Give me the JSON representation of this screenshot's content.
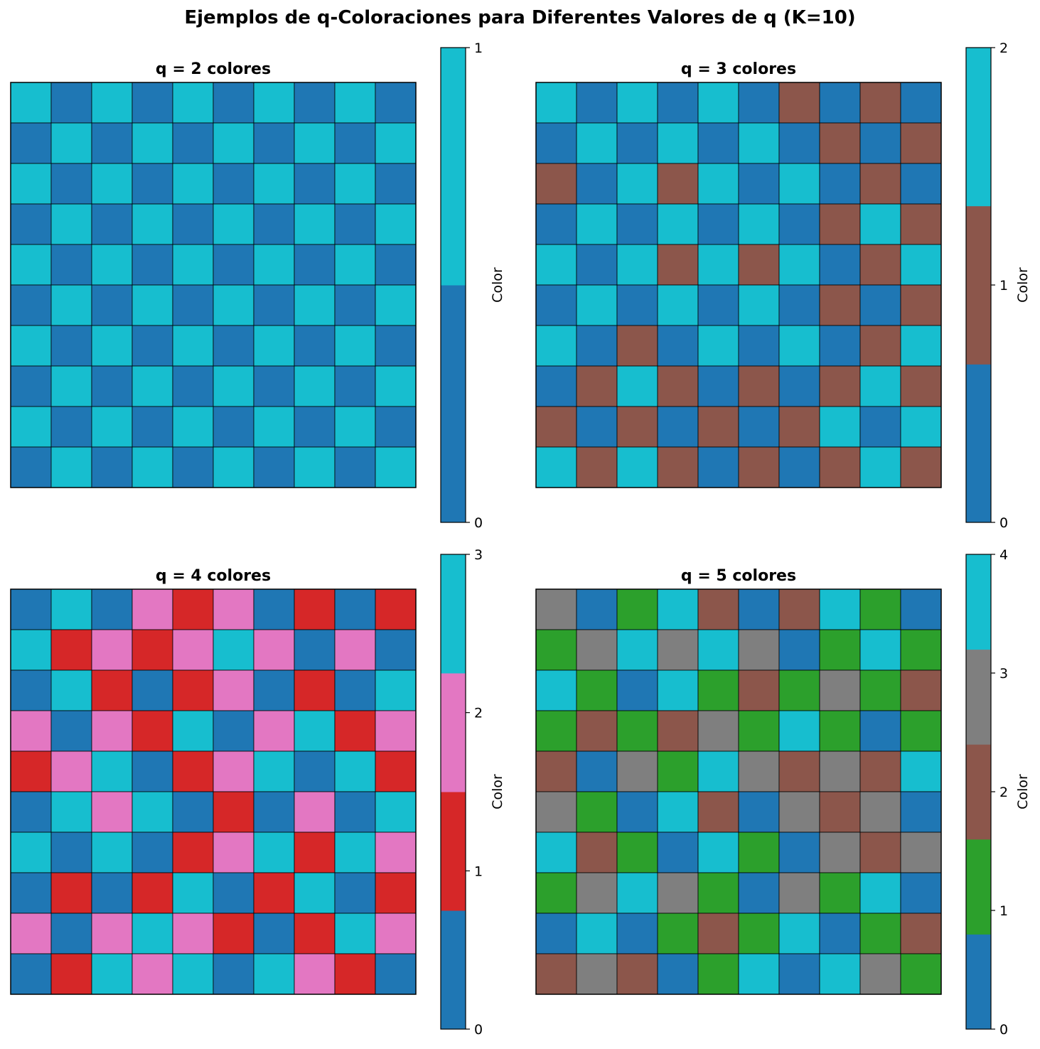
{
  "title": "Ejemplos de q-Coloraciones para Diferentes Valores de q (K=10)",
  "chart_data": [
    {
      "type": "heatmap",
      "title": "q = 2 colores",
      "q": 2,
      "colorbar_label": "Color",
      "colorbar_ticks": [
        0,
        1
      ],
      "colors": [
        "#1f77b4",
        "#17becf"
      ],
      "grid": [
        [
          1,
          0,
          1,
          0,
          1,
          0,
          1,
          0,
          1,
          0
        ],
        [
          0,
          1,
          0,
          1,
          0,
          1,
          0,
          1,
          0,
          1
        ],
        [
          1,
          0,
          1,
          0,
          1,
          0,
          1,
          0,
          1,
          0
        ],
        [
          0,
          1,
          0,
          1,
          0,
          1,
          0,
          1,
          0,
          1
        ],
        [
          1,
          0,
          1,
          0,
          1,
          0,
          1,
          0,
          1,
          0
        ],
        [
          0,
          1,
          0,
          1,
          0,
          1,
          0,
          1,
          0,
          1
        ],
        [
          1,
          0,
          1,
          0,
          1,
          0,
          1,
          0,
          1,
          0
        ],
        [
          0,
          1,
          0,
          1,
          0,
          1,
          0,
          1,
          0,
          1
        ],
        [
          1,
          0,
          1,
          0,
          1,
          0,
          1,
          0,
          1,
          0
        ],
        [
          0,
          1,
          0,
          1,
          0,
          1,
          0,
          1,
          0,
          1
        ]
      ]
    },
    {
      "type": "heatmap",
      "title": "q = 3 colores",
      "q": 3,
      "colorbar_label": "Color",
      "colorbar_ticks": [
        0,
        1,
        2
      ],
      "colors": [
        "#1f77b4",
        "#8c564b",
        "#17becf"
      ],
      "grid": [
        [
          2,
          0,
          2,
          0,
          2,
          0,
          1,
          0,
          1,
          0
        ],
        [
          0,
          2,
          0,
          2,
          0,
          2,
          0,
          1,
          0,
          1
        ],
        [
          1,
          0,
          2,
          1,
          2,
          0,
          2,
          0,
          1,
          0
        ],
        [
          0,
          2,
          0,
          2,
          0,
          2,
          0,
          1,
          2,
          1
        ],
        [
          2,
          0,
          2,
          1,
          2,
          1,
          2,
          0,
          1,
          2
        ],
        [
          0,
          2,
          0,
          2,
          0,
          2,
          0,
          1,
          0,
          1
        ],
        [
          2,
          0,
          1,
          0,
          2,
          0,
          2,
          0,
          1,
          2
        ],
        [
          0,
          1,
          2,
          1,
          0,
          1,
          0,
          1,
          2,
          1
        ],
        [
          1,
          0,
          1,
          0,
          1,
          0,
          1,
          2,
          0,
          2
        ],
        [
          2,
          1,
          2,
          1,
          0,
          1,
          0,
          1,
          2,
          1
        ]
      ]
    },
    {
      "type": "heatmap",
      "title": "q = 4 colores",
      "q": 4,
      "colorbar_label": "Color",
      "colorbar_ticks": [
        0,
        1,
        2,
        3
      ],
      "colors": [
        "#1f77b4",
        "#d62728",
        "#e377c2",
        "#17becf"
      ],
      "grid": [
        [
          0,
          3,
          0,
          2,
          1,
          2,
          0,
          1,
          0,
          1
        ],
        [
          3,
          1,
          2,
          1,
          2,
          3,
          2,
          0,
          2,
          0
        ],
        [
          0,
          3,
          1,
          0,
          1,
          2,
          0,
          1,
          0,
          3
        ],
        [
          2,
          0,
          2,
          1,
          3,
          0,
          2,
          3,
          1,
          2
        ],
        [
          1,
          2,
          3,
          0,
          1,
          2,
          3,
          0,
          3,
          1
        ],
        [
          0,
          3,
          2,
          3,
          0,
          1,
          0,
          2,
          0,
          3
        ],
        [
          3,
          0,
          3,
          0,
          1,
          2,
          3,
          1,
          3,
          2
        ],
        [
          0,
          1,
          0,
          1,
          3,
          0,
          1,
          3,
          0,
          1
        ],
        [
          2,
          0,
          2,
          3,
          2,
          1,
          0,
          1,
          3,
          2
        ],
        [
          0,
          1,
          3,
          2,
          3,
          0,
          3,
          2,
          1,
          0
        ]
      ]
    },
    {
      "type": "heatmap",
      "title": "q = 5 colores",
      "q": 5,
      "colorbar_label": "Color",
      "colorbar_ticks": [
        0,
        1,
        2,
        3,
        4
      ],
      "colors": [
        "#1f77b4",
        "#2ca02c",
        "#8c564b",
        "#7f7f7f",
        "#17becf"
      ],
      "grid": [
        [
          3,
          0,
          1,
          4,
          2,
          0,
          2,
          4,
          1,
          0
        ],
        [
          1,
          3,
          4,
          3,
          4,
          3,
          0,
          1,
          4,
          1
        ],
        [
          4,
          1,
          0,
          4,
          1,
          2,
          1,
          3,
          1,
          2
        ],
        [
          1,
          2,
          1,
          2,
          3,
          1,
          4,
          1,
          0,
          1
        ],
        [
          2,
          0,
          3,
          1,
          4,
          3,
          2,
          3,
          2,
          4
        ],
        [
          3,
          1,
          0,
          4,
          2,
          0,
          3,
          2,
          3,
          0
        ],
        [
          4,
          2,
          1,
          0,
          4,
          1,
          0,
          3,
          2,
          3
        ],
        [
          1,
          3,
          4,
          3,
          1,
          0,
          3,
          1,
          4,
          0
        ],
        [
          0,
          4,
          0,
          1,
          2,
          1,
          4,
          0,
          1,
          2
        ],
        [
          2,
          3,
          2,
          0,
          1,
          4,
          0,
          4,
          3,
          1
        ]
      ]
    }
  ]
}
